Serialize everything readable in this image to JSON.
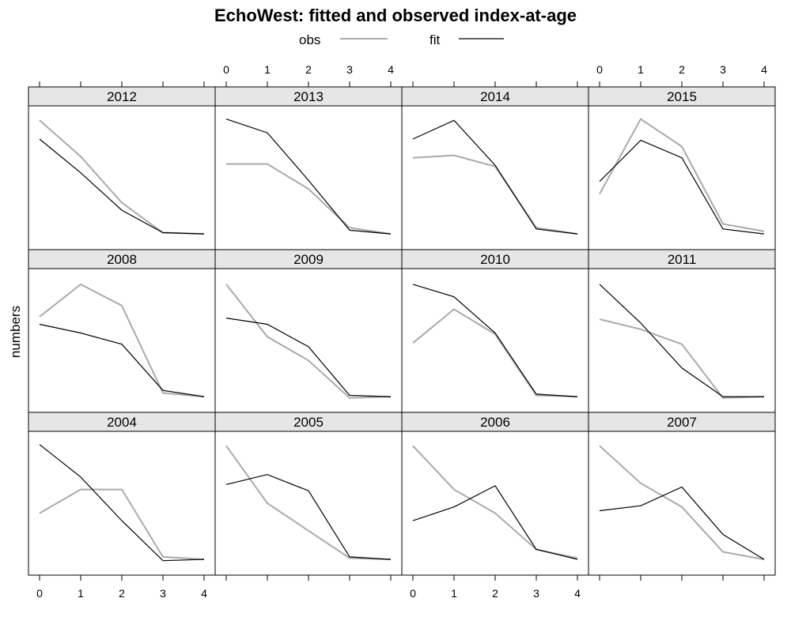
{
  "chart_data": {
    "type": "line",
    "title": "EchoWest: fitted and observed index-at-age",
    "ylabel": "numbers",
    "x": [
      0,
      1,
      2,
      3,
      4
    ],
    "xlim": [
      0,
      4
    ],
    "ylim": [
      0,
      1
    ],
    "legend": {
      "position": "top",
      "entries": [
        {
          "name": "obs",
          "color": "#aaaaaa"
        },
        {
          "name": "fit",
          "color": "#000000"
        }
      ]
    },
    "layout": {
      "rows": 3,
      "cols": 4
    },
    "panels": [
      {
        "year": "2012",
        "obs": [
          0.96,
          0.67,
          0.3,
          0.06,
          0.05
        ],
        "fit": [
          0.81,
          0.54,
          0.24,
          0.06,
          0.05
        ]
      },
      {
        "year": "2013",
        "obs": [
          0.61,
          0.61,
          0.41,
          0.1,
          0.05
        ],
        "fit": [
          0.97,
          0.86,
          0.48,
          0.08,
          0.05
        ]
      },
      {
        "year": "2014",
        "obs": [
          0.66,
          0.68,
          0.59,
          0.1,
          0.05
        ],
        "fit": [
          0.81,
          0.96,
          0.6,
          0.09,
          0.05
        ]
      },
      {
        "year": "2015",
        "obs": [
          0.37,
          0.97,
          0.75,
          0.13,
          0.07
        ],
        "fit": [
          0.47,
          0.8,
          0.66,
          0.09,
          0.05
        ]
      },
      {
        "year": "2008",
        "obs": [
          0.69,
          0.95,
          0.78,
          0.08,
          0.05
        ],
        "fit": [
          0.63,
          0.56,
          0.47,
          0.1,
          0.05
        ]
      },
      {
        "year": "2009",
        "obs": [
          0.95,
          0.53,
          0.34,
          0.04,
          0.05
        ],
        "fit": [
          0.68,
          0.63,
          0.45,
          0.06,
          0.05
        ]
      },
      {
        "year": "2010",
        "obs": [
          0.48,
          0.75,
          0.55,
          0.06,
          0.05
        ],
        "fit": [
          0.95,
          0.85,
          0.56,
          0.07,
          0.05
        ]
      },
      {
        "year": "2011",
        "obs": [
          0.67,
          0.59,
          0.47,
          0.04,
          0.05
        ],
        "fit": [
          0.95,
          0.64,
          0.28,
          0.05,
          0.05
        ]
      },
      {
        "year": "2004",
        "obs": [
          0.42,
          0.61,
          0.61,
          0.07,
          0.05
        ],
        "fit": [
          0.97,
          0.71,
          0.36,
          0.04,
          0.05
        ]
      },
      {
        "year": "2005",
        "obs": [
          0.96,
          0.5,
          0.28,
          0.06,
          0.05
        ],
        "fit": [
          0.65,
          0.73,
          0.6,
          0.07,
          0.05
        ]
      },
      {
        "year": "2006",
        "obs": [
          0.96,
          0.61,
          0.42,
          0.13,
          0.06
        ],
        "fit": [
          0.36,
          0.47,
          0.64,
          0.13,
          0.05
        ]
      },
      {
        "year": "2007",
        "obs": [
          0.96,
          0.66,
          0.47,
          0.11,
          0.05
        ],
        "fit": [
          0.44,
          0.48,
          0.63,
          0.25,
          0.05
        ]
      }
    ],
    "grid": false
  }
}
